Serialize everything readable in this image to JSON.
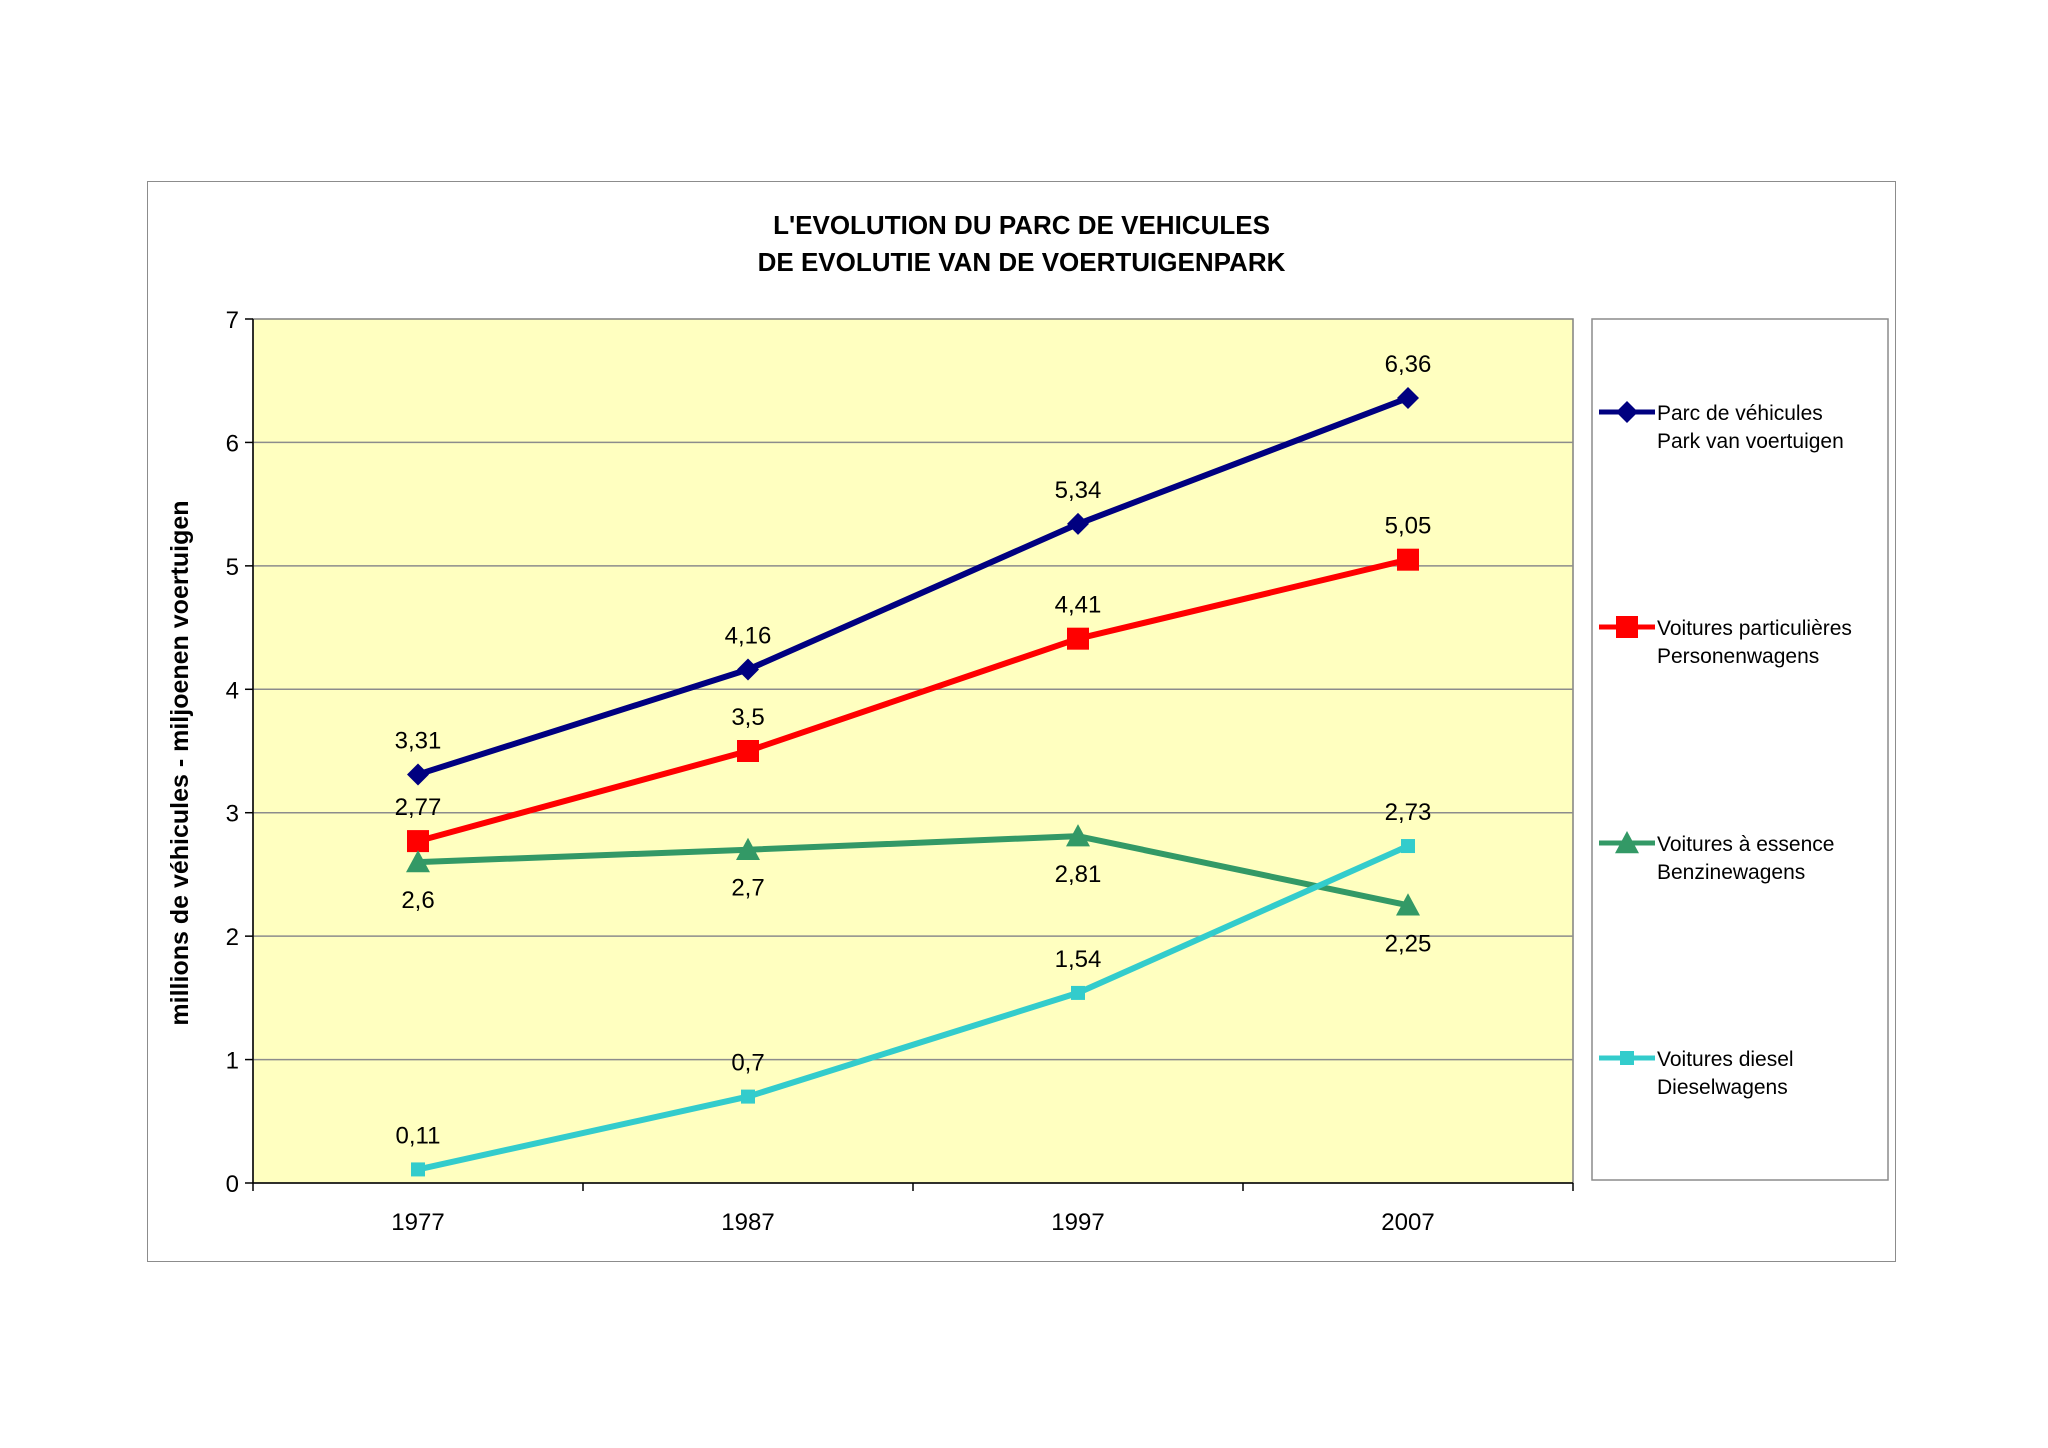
{
  "chart_data": {
    "type": "line",
    "title_lines": [
      "L'EVOLUTION DU PARC DE VEHICULES",
      "DE EVOLUTIE VAN DE VOERTUIGENPARK"
    ],
    "ylabel": "millions de véhicules - miljoenen voertuigen",
    "xlabel": "",
    "categories": [
      "1977",
      "1987",
      "1997",
      "2007"
    ],
    "ylim": [
      0,
      7
    ],
    "yticks": [
      0,
      1,
      2,
      3,
      4,
      5,
      6,
      7
    ],
    "grid": true,
    "plot_background": "#ffffc0",
    "legend_position": "right",
    "series": [
      {
        "name_lines": [
          "Parc de véhicules",
          "Park van voertuigen"
        ],
        "color": "#000080",
        "marker": "diamond",
        "values": [
          3.31,
          4.16,
          5.34,
          6.36
        ],
        "labels": [
          "3,31",
          "4,16",
          "5,34",
          "6,36"
        ],
        "label_position": "above"
      },
      {
        "name_lines": [
          "Voitures particulières",
          "Personenwagens"
        ],
        "color": "#ff0000",
        "marker": "square",
        "values": [
          2.77,
          3.5,
          4.41,
          5.05
        ],
        "labels": [
          "2,77",
          "3,5",
          "4,41",
          "5,05"
        ],
        "label_position": "above"
      },
      {
        "name_lines": [
          "Voitures à essence",
          "Benzinewagens"
        ],
        "color": "#339966",
        "marker": "triangle",
        "values": [
          2.6,
          2.7,
          2.81,
          2.25
        ],
        "labels": [
          "2,6",
          "2,7",
          "2,81",
          "2,25"
        ],
        "label_position": "below"
      },
      {
        "name_lines": [
          "Voitures diesel",
          "Dieselwagens"
        ],
        "color": "#33cccc",
        "marker": "small-square",
        "values": [
          0.11,
          0.7,
          1.54,
          2.73
        ],
        "labels": [
          "0,11",
          "0,7",
          "1,54",
          "2,73"
        ],
        "label_position": "above"
      }
    ]
  }
}
